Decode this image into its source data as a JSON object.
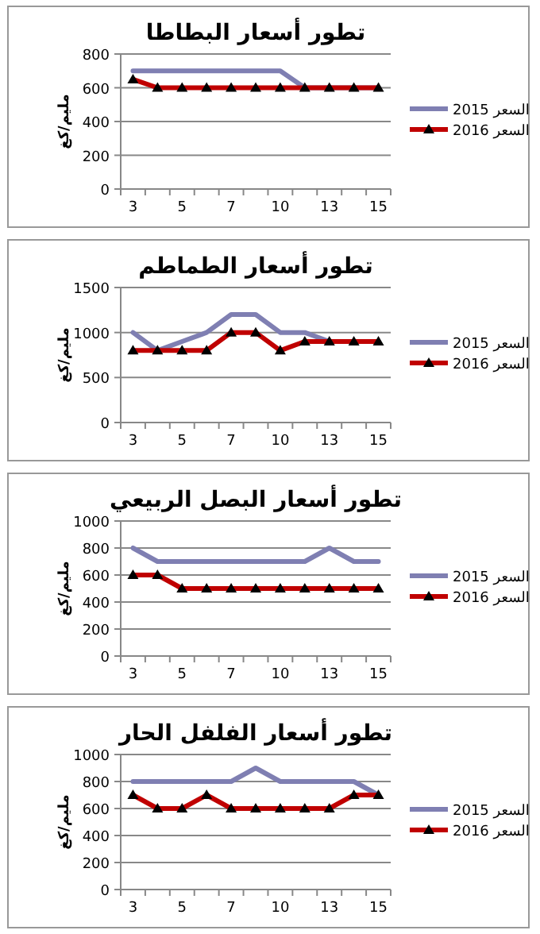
{
  "chart_data": [
    {
      "type": "line",
      "title": "تطور أسعار البطاطا",
      "ylabel": "مليم/كغ",
      "categories": [
        "3",
        null,
        "5",
        null,
        "7",
        null,
        "10",
        null,
        "13",
        null,
        "15"
      ],
      "ylim": [
        0,
        800
      ],
      "yticks": [
        0,
        200,
        400,
        600,
        800
      ],
      "grid": "y",
      "legend": "right",
      "series": [
        {
          "name": "السعر 2015",
          "color": "#7f7fb2",
          "marker": "none",
          "values": [
            700,
            700,
            700,
            700,
            700,
            700,
            700,
            600,
            600,
            600,
            600
          ]
        },
        {
          "name": "السعر 2016",
          "color": "#c00000",
          "marker": "triangle",
          "values": [
            650,
            600,
            600,
            600,
            600,
            600,
            600,
            600,
            600,
            600,
            600
          ]
        }
      ]
    },
    {
      "type": "line",
      "title": "تطور أسعار الطماطم",
      "ylabel": "مليم/كغ",
      "categories": [
        "3",
        null,
        "5",
        null,
        "7",
        null,
        "10",
        null,
        "13",
        null,
        "15"
      ],
      "ylim": [
        0,
        1500
      ],
      "yticks": [
        0,
        500,
        1000,
        1500
      ],
      "grid": "y",
      "legend": "right",
      "series": [
        {
          "name": "السعر 2015",
          "color": "#7f7fb2",
          "marker": "none",
          "values": [
            1000,
            800,
            900,
            1000,
            1200,
            1200,
            1000,
            1000,
            900,
            900,
            900
          ]
        },
        {
          "name": "السعر 2016",
          "color": "#c00000",
          "marker": "triangle",
          "values": [
            800,
            800,
            800,
            800,
            1000,
            1000,
            800,
            900,
            900,
            900,
            900
          ]
        }
      ]
    },
    {
      "type": "line",
      "title": "تطور أسعار البصل الربيعي",
      "ylabel": "مليم/كغ",
      "categories": [
        "3",
        null,
        "5",
        null,
        "7",
        null,
        "10",
        null,
        "13",
        null,
        "15"
      ],
      "ylim": [
        0,
        1000
      ],
      "yticks": [
        0,
        200,
        400,
        600,
        800,
        1000
      ],
      "grid": "y",
      "legend": "right",
      "series": [
        {
          "name": "السعر 2015",
          "color": "#7f7fb2",
          "marker": "none",
          "values": [
            800,
            700,
            700,
            700,
            700,
            700,
            700,
            700,
            800,
            700,
            700
          ]
        },
        {
          "name": "السعر 2016",
          "color": "#c00000",
          "marker": "triangle",
          "values": [
            600,
            600,
            500,
            500,
            500,
            500,
            500,
            500,
            500,
            500,
            500
          ]
        }
      ]
    },
    {
      "type": "line",
      "title": "تطور أسعار الفلفل الحار",
      "ylabel": "مليم/كغ",
      "categories": [
        "3",
        null,
        "5",
        null,
        "7",
        null,
        "10",
        null,
        "13",
        null,
        "15"
      ],
      "ylim": [
        0,
        1000
      ],
      "yticks": [
        0,
        200,
        400,
        600,
        800,
        1000
      ],
      "grid": "y",
      "legend": "right",
      "series": [
        {
          "name": "السعر 2015",
          "color": "#7f7fb2",
          "marker": "none",
          "values": [
            800,
            800,
            800,
            800,
            800,
            900,
            800,
            800,
            800,
            800,
            700
          ]
        },
        {
          "name": "السعر 2016",
          "color": "#c00000",
          "marker": "triangle",
          "values": [
            700,
            600,
            600,
            700,
            600,
            600,
            600,
            600,
            600,
            700,
            700
          ]
        }
      ]
    }
  ]
}
